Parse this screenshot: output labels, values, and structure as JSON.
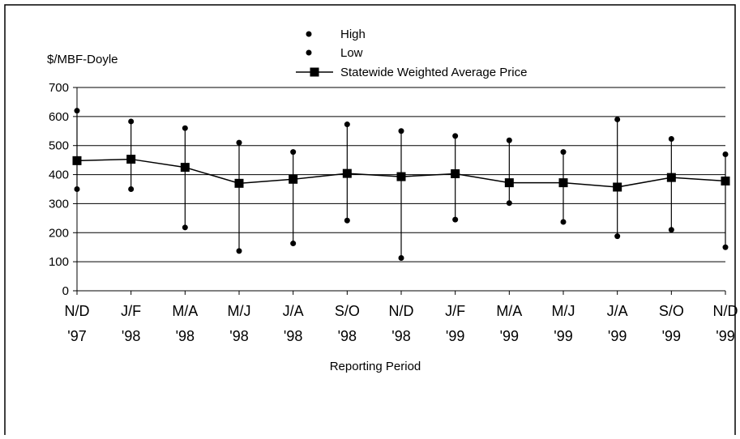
{
  "chart_data": {
    "type": "line",
    "ylabel": "$/MBF-Doyle",
    "xlabel": "Reporting Period",
    "ylim": [
      0,
      700
    ],
    "yticks": [
      0,
      100,
      200,
      300,
      400,
      500,
      600,
      700
    ],
    "grid": true,
    "legend_position": "top-center",
    "categories": [
      {
        "top": "N/D",
        "bottom": "'97"
      },
      {
        "top": "J/F",
        "bottom": "'98"
      },
      {
        "top": "M/A",
        "bottom": "'98"
      },
      {
        "top": "M/J",
        "bottom": "'98"
      },
      {
        "top": "J/A",
        "bottom": "'98"
      },
      {
        "top": "S/O",
        "bottom": "'98"
      },
      {
        "top": "N/D",
        "bottom": "'98"
      },
      {
        "top": "J/F",
        "bottom": "'99"
      },
      {
        "top": "M/A",
        "bottom": "'99"
      },
      {
        "top": "M/J",
        "bottom": "'99"
      },
      {
        "top": "J/A",
        "bottom": "'99"
      },
      {
        "top": "S/O",
        "bottom": "'99"
      },
      {
        "top": "N/D",
        "bottom": "'99"
      }
    ],
    "series": [
      {
        "name": "High",
        "values": [
          620,
          583,
          560,
          510,
          478,
          573,
          550,
          533,
          518,
          478,
          590,
          523,
          470
        ]
      },
      {
        "name": "Low",
        "values": [
          350,
          350,
          218,
          137,
          163,
          242,
          113,
          245,
          302,
          237,
          188,
          210,
          150
        ]
      },
      {
        "name": "Statewide Weighted Average Price",
        "values": [
          448,
          453,
          425,
          370,
          384,
          404,
          393,
          403,
          372,
          372,
          357,
          390,
          378
        ]
      }
    ],
    "colors": {
      "line": "#000000",
      "grid": "#000000",
      "frame": "#000000",
      "background": "#ffffff"
    }
  }
}
